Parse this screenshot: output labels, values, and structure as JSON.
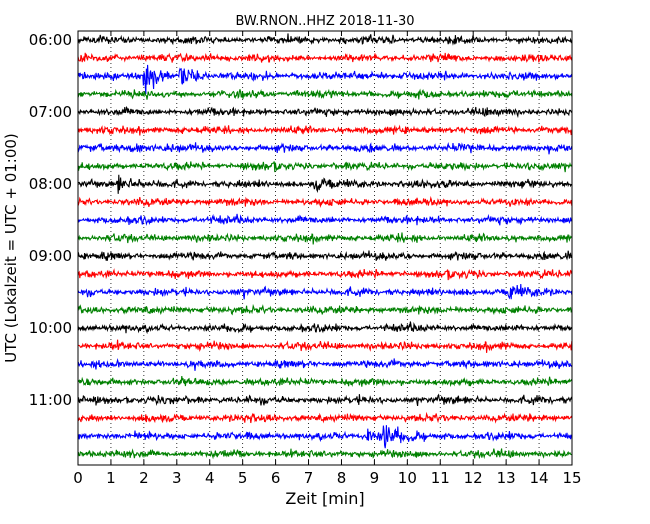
{
  "chart_data": {
    "type": "line",
    "title": "BW.RNON..HHZ 2018-11-30",
    "xlabel": "Zeit  [min]",
    "ylabel": "UTC (Lokalzeit = UTC + 01:00)",
    "xlim": [
      0,
      15
    ],
    "x_ticks": [
      "0",
      "1",
      "2",
      "3",
      "4",
      "5",
      "6",
      "7",
      "8",
      "9",
      "10",
      "11",
      "12",
      "13",
      "14",
      "15"
    ],
    "y_tick_labels": [
      "06:00",
      "07:00",
      "08:00",
      "09:00",
      "10:00",
      "11:00"
    ],
    "trace_start_times": [
      "06:00",
      "06:15",
      "06:30",
      "06:45",
      "07:00",
      "07:15",
      "07:30",
      "07:45",
      "08:00",
      "08:15",
      "08:30",
      "08:45",
      "09:00",
      "09:15",
      "09:30",
      "09:45",
      "10:00",
      "10:15",
      "10:30",
      "10:45",
      "11:00",
      "11:15",
      "11:30",
      "11:45"
    ],
    "trace_colors": [
      "#000000",
      "#ff0000",
      "#0000ff",
      "#008000"
    ],
    "vertical_grid": "dotted",
    "events": [
      {
        "trace": "06:30",
        "minute": 2.0,
        "strength": 1.0
      },
      {
        "trace": "06:30",
        "minute": 3.1,
        "strength": 0.55
      },
      {
        "trace": "06:30",
        "minute": 0.8,
        "strength": 0.3
      },
      {
        "trace": "07:30",
        "minute": 1.6,
        "strength": 0.35
      },
      {
        "trace": "08:00",
        "minute": 1.2,
        "strength": 0.35
      },
      {
        "trace": "08:00",
        "minute": 7.2,
        "strength": 0.3
      },
      {
        "trace": "09:30",
        "minute": 13.1,
        "strength": 0.45
      },
      {
        "trace": "11:30",
        "minute": 9.3,
        "strength": 0.85
      },
      {
        "trace": "11:30",
        "minute": 8.8,
        "strength": 0.35
      }
    ]
  }
}
